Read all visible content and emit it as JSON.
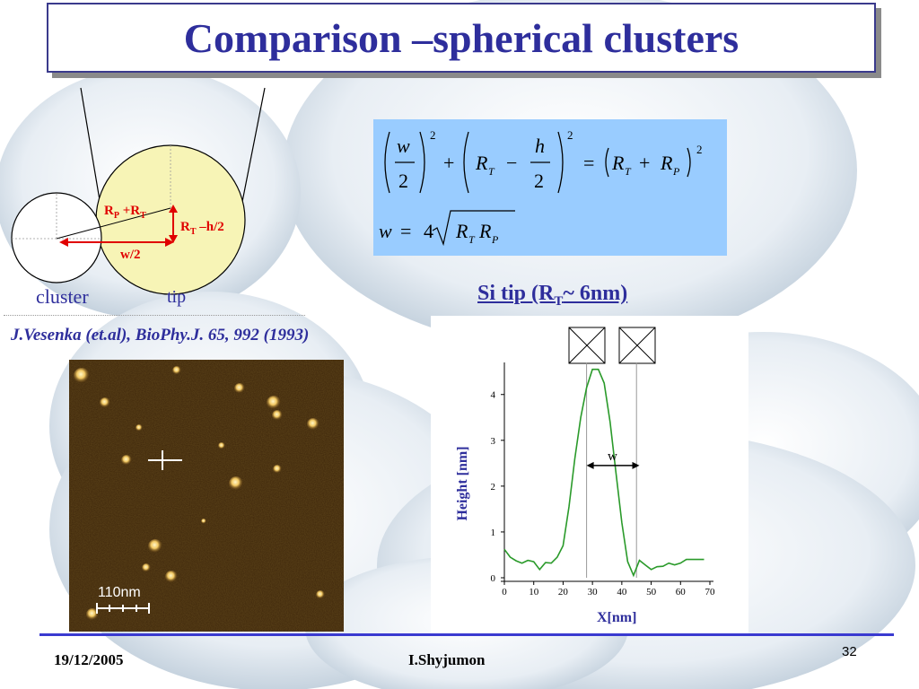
{
  "slide": {
    "title": "Comparison –spherical clusters",
    "page_number": "32",
    "date": "19/12/2005",
    "author": "I.Shyjumon"
  },
  "diagram": {
    "label_rp_rt_a": "R",
    "label_rp_rt_b": "P",
    "label_rp_rt_c": " +R",
    "label_rp_rt_d": "T",
    "label_rt_h_a": "R",
    "label_rt_h_b": "T",
    "label_rt_h_c": " –h/2",
    "label_w2": "w/2",
    "label_cluster": "cluster",
    "label_tip": "tip"
  },
  "reference": "J.Vesenka (et.al), BioPhy.J. 65, 992 (1993)",
  "equations": {
    "eq1_w": "w",
    "eq1_2a": "2",
    "eq1_sq1": "2",
    "eq1_plus": "+",
    "eq1_R": "R",
    "eq1_T": "T",
    "eq1_minus": "−",
    "eq1_h": "h",
    "eq1_2b": "2",
    "eq1_sq2": "2",
    "eq1_eq": "=",
    "eq1_R2": "R",
    "eq1_T2": "T",
    "eq1_plus2": "+",
    "eq1_R3": "R",
    "eq1_P": "P",
    "eq1_sq3": "2",
    "eq2_w": "w",
    "eq2_eq": "=",
    "eq2_4": "4",
    "eq2_R1": "R",
    "eq2_T": "T",
    "eq2_R2": "R",
    "eq2_P": "P"
  },
  "si_tip": {
    "a": "Si tip (R",
    "b": "T",
    "c": "~ 6nm)"
  },
  "afm_image": {
    "scale_label": "110nm"
  },
  "chart_data": {
    "type": "line",
    "xlabel": "X[nm]",
    "ylabel": "Height [nm]",
    "xlim": [
      0,
      70
    ],
    "ylim": [
      0,
      4.7
    ],
    "xticks": [
      "0",
      "10",
      "20",
      "30",
      "40",
      "50",
      "60",
      "70"
    ],
    "yticks": [
      "0",
      "1",
      "2",
      "3",
      "4"
    ],
    "annotation": "w",
    "annotation_x": [
      28,
      46
    ],
    "annotation_y": 2.45,
    "vlines": [
      28,
      45
    ],
    "x": [
      0,
      2,
      4,
      6,
      8,
      10,
      12,
      14,
      16,
      18,
      20,
      22,
      24,
      26,
      28,
      30,
      32,
      34,
      36,
      38,
      40,
      42,
      44,
      46,
      48,
      50,
      52,
      54,
      56,
      58,
      60,
      62,
      64,
      66,
      68
    ],
    "values": [
      0.62,
      0.45,
      0.37,
      0.32,
      0.38,
      0.35,
      0.18,
      0.33,
      0.32,
      0.45,
      0.7,
      1.55,
      2.6,
      3.5,
      4.15,
      4.55,
      4.55,
      4.25,
      3.4,
      2.3,
      1.2,
      0.35,
      0.05,
      0.38,
      0.28,
      0.18,
      0.24,
      0.25,
      0.32,
      0.28,
      0.32,
      0.4,
      0.4,
      0.4,
      0.4
    ]
  }
}
